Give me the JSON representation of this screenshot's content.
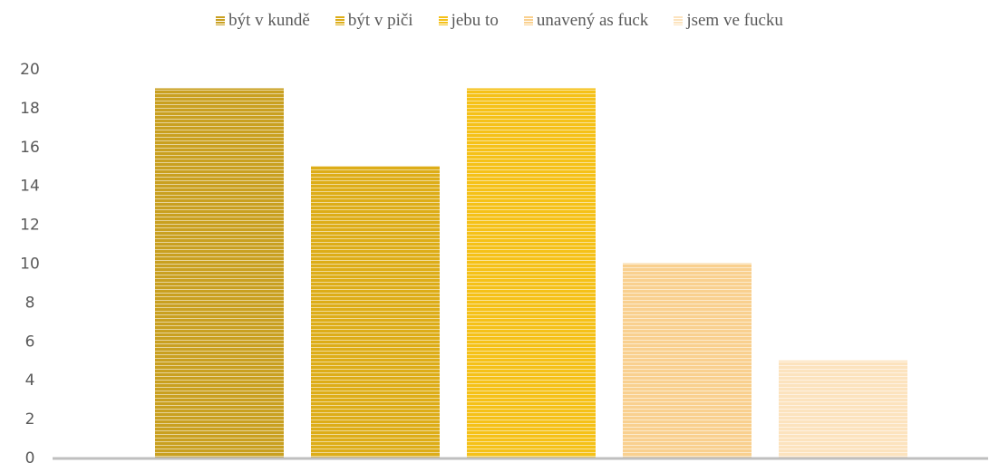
{
  "chart_data": {
    "type": "bar",
    "categories": [
      "být v kundě",
      "být v piči",
      "jebu to",
      "unavený as fuck",
      "jsem ve fucku"
    ],
    "series": [
      {
        "name": "být v kundě",
        "color": "#C9A020",
        "values": [
          19,
          null,
          null,
          null,
          null
        ]
      },
      {
        "name": "být v piči",
        "color": "#DDAD18",
        "values": [
          null,
          15,
          null,
          null,
          null
        ]
      },
      {
        "name": "jebu to",
        "color": "#F5C118",
        "values": [
          null,
          null,
          19,
          null,
          null
        ]
      },
      {
        "name": "unavený as fuck",
        "color": "#F9D08F",
        "values": [
          null,
          null,
          null,
          10,
          null
        ]
      },
      {
        "name": "jsem ve fucku",
        "color": "#FCE3BE",
        "values": [
          null,
          null,
          null,
          null,
          5
        ]
      }
    ],
    "ylim": [
      0,
      20
    ],
    "yticks": [
      0,
      2,
      4,
      6,
      8,
      10,
      12,
      14,
      16,
      18,
      20
    ],
    "grid": false,
    "legend": "top",
    "fill_pattern": "horizontal-stripes"
  },
  "colors": {
    "axis": "#BFBFBF",
    "tick_text": "#595959"
  }
}
